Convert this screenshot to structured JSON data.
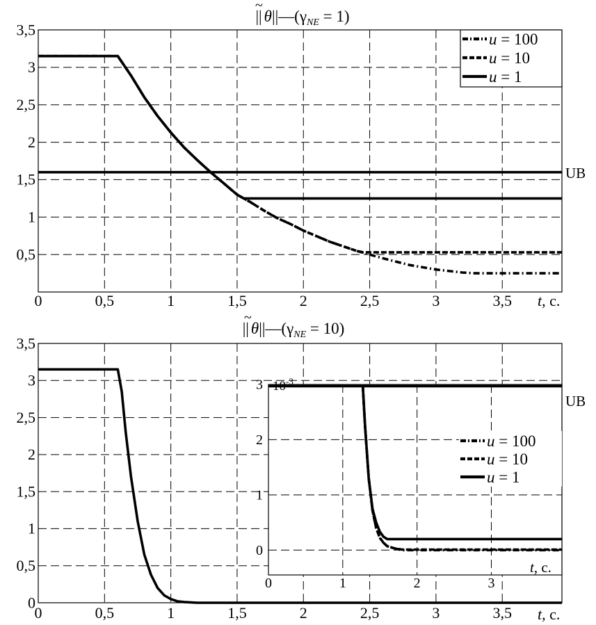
{
  "chart_data": [
    {
      "type": "line",
      "title": "|| θ̃ || — (γNE = 1)",
      "title_parts": {
        "norm_open": "||",
        "theta": "θ",
        "tilde": "~",
        "norm_close": "||—(γ",
        "sub": "NE",
        "tail": " = 1)"
      },
      "xlabel": "t, c.",
      "xlabel_parts": {
        "t": "t",
        "unit": ", c."
      },
      "xlim": [
        0,
        3.95
      ],
      "ylim": [
        0,
        3.5
      ],
      "xticks": [
        0,
        0.5,
        1,
        1.5,
        2,
        2.5,
        3,
        3.5
      ],
      "xtick_labels": [
        "0",
        "0,5",
        "1",
        "1,5",
        "2",
        "2,5",
        "3",
        "3,5"
      ],
      "yticks": [
        0,
        0.5,
        1,
        1.5,
        2,
        2.5,
        3,
        3.5
      ],
      "ytick_labels": [
        "",
        "0,5",
        "1",
        "1,5",
        "2",
        "2,5",
        "3",
        "3,5"
      ],
      "grid": true,
      "legend_position": "top-right",
      "legend": [
        {
          "prefix": "u",
          "text": " = 100",
          "style": "dash-dot"
        },
        {
          "prefix": "u",
          "text": " = 10",
          "style": "dashed"
        },
        {
          "prefix": "u",
          "text": " = 1",
          "style": "solid"
        }
      ],
      "annotations": [
        {
          "text": "UB",
          "y": 1.6
        }
      ],
      "series": [
        {
          "style": "dash-dot",
          "x": [
            0,
            0.6,
            0.7,
            0.8,
            0.9,
            1.0,
            1.1,
            1.2,
            1.3,
            1.4,
            1.5,
            1.6,
            1.7,
            1.8,
            1.9,
            2.0,
            2.2,
            2.4,
            2.6,
            2.8,
            3.0,
            3.2,
            3.3,
            3.95
          ],
          "y": [
            3.15,
            3.15,
            2.89,
            2.6,
            2.35,
            2.13,
            1.93,
            1.76,
            1.6,
            1.45,
            1.3,
            1.2,
            1.09,
            0.99,
            0.91,
            0.82,
            0.67,
            0.55,
            0.45,
            0.36,
            0.3,
            0.26,
            0.25,
            0.25
          ]
        },
        {
          "style": "dashed",
          "x": [
            0,
            0.6,
            0.7,
            0.8,
            0.9,
            1.0,
            1.1,
            1.2,
            1.3,
            1.4,
            1.5,
            1.6,
            1.7,
            1.8,
            1.9,
            2.0,
            2.2,
            2.4,
            2.45,
            3.95
          ],
          "y": [
            3.15,
            3.15,
            2.89,
            2.6,
            2.35,
            2.13,
            1.93,
            1.76,
            1.6,
            1.45,
            1.3,
            1.2,
            1.09,
            0.99,
            0.91,
            0.82,
            0.67,
            0.55,
            0.53,
            0.53
          ]
        },
        {
          "style": "solid",
          "x": [
            0,
            0.6,
            0.7,
            0.8,
            0.9,
            1.0,
            1.1,
            1.2,
            1.3,
            1.4,
            1.5,
            1.55,
            3.95
          ],
          "y": [
            3.15,
            3.15,
            2.89,
            2.6,
            2.35,
            2.13,
            1.93,
            1.76,
            1.6,
            1.45,
            1.3,
            1.25,
            1.25
          ]
        },
        {
          "style": "solid",
          "x": [
            0,
            3.95
          ],
          "y": [
            1.6,
            1.6
          ]
        }
      ]
    },
    {
      "type": "line",
      "title": "|| θ̃ || — (γNE = 10)",
      "title_parts": {
        "norm_open": "||",
        "theta": "θ",
        "tilde": "~",
        "norm_close": "||—(γ",
        "sub": "NE",
        "tail": " = 10)"
      },
      "xlabel": "t, c.",
      "xlabel_parts": {
        "t": "t",
        "unit": ", c."
      },
      "xlim": [
        0,
        3.95
      ],
      "ylim": [
        0,
        3.5
      ],
      "xticks": [
        0,
        0.5,
        1,
        1.5,
        2,
        2.5,
        3,
        3.5
      ],
      "xtick_labels": [
        "0",
        "0,5",
        "1",
        "1,5",
        "2",
        "2,5",
        "3",
        "3,5"
      ],
      "yticks": [
        0,
        0.5,
        1,
        1.5,
        2,
        2.5,
        3,
        3.5
      ],
      "ytick_labels": [
        "0",
        "0,5",
        "1",
        "1,5",
        "2",
        "2,5",
        "3",
        "3,5"
      ],
      "grid": true,
      "series": [
        {
          "style": "solid",
          "x": [
            0,
            0.6,
            0.63,
            0.66,
            0.7,
            0.75,
            0.8,
            0.85,
            0.9,
            0.95,
            1.0,
            1.05,
            1.1,
            1.2,
            1.3,
            3.95
          ],
          "y": [
            3.15,
            3.15,
            2.85,
            2.3,
            1.7,
            1.1,
            0.65,
            0.38,
            0.2,
            0.1,
            0.05,
            0.02,
            0.01,
            0.0,
            0.0,
            0.0
          ]
        }
      ],
      "inset": {
        "xlim": [
          0,
          3.95
        ],
        "ylim": [
          -0.45,
          3.0
        ],
        "xticks": [
          0,
          1,
          2,
          3
        ],
        "xtick_labels": [
          "0",
          "1",
          "2",
          "3"
        ],
        "yticks": [
          0,
          1,
          2,
          3
        ],
        "ytick_labels": [
          "0",
          "1",
          "2",
          "3"
        ],
        "scale_label": {
          "base": "10",
          "exp": "-3"
        },
        "xlabel": "t, c.",
        "xlabel_parts": {
          "t": "t",
          "unit": ", c."
        },
        "grid": true,
        "legend_position": "right",
        "legend": [
          {
            "prefix": "u",
            "text": " = 100",
            "style": "dash-dot"
          },
          {
            "prefix": "u",
            "text": " = 10",
            "style": "dashed"
          },
          {
            "prefix": "u",
            "text": " = 1",
            "style": "solid"
          }
        ],
        "annotations": [
          {
            "text": "UB",
            "y": 2.97
          }
        ],
        "series": [
          {
            "style": "dash-dot",
            "x": [
              1.27,
              1.3,
              1.35,
              1.4,
              1.45,
              1.5,
              1.55,
              1.6,
              1.7,
              1.8,
              3.95
            ],
            "y": [
              2.97,
              2.25,
              1.3,
              0.72,
              0.4,
              0.22,
              0.13,
              0.07,
              0.03,
              0.0,
              0.0
            ]
          },
          {
            "style": "dashed",
            "x": [
              1.27,
              1.3,
              1.35,
              1.4,
              1.45,
              1.5,
              1.55,
              1.6,
              1.7,
              1.8,
              3.95
            ],
            "y": [
              2.97,
              2.25,
              1.3,
              0.72,
              0.4,
              0.22,
              0.13,
              0.07,
              0.03,
              0.01,
              0.01
            ]
          },
          {
            "style": "solid",
            "x": [
              1.27,
              1.3,
              1.35,
              1.4,
              1.45,
              1.5,
              1.55,
              1.6,
              3.95
            ],
            "y": [
              2.97,
              2.25,
              1.3,
              0.75,
              0.5,
              0.33,
              0.24,
              0.2,
              0.2
            ]
          },
          {
            "style": "solid",
            "x": [
              0,
              3.95
            ],
            "y": [
              2.97,
              2.97
            ]
          }
        ]
      }
    }
  ]
}
